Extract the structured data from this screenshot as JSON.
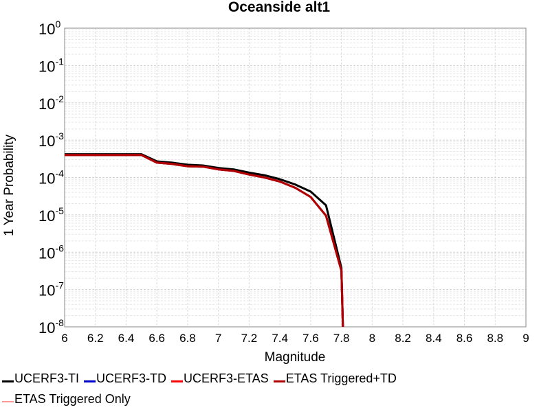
{
  "chart_data": {
    "type": "line",
    "title": "Oceanside alt1",
    "xlabel": "Magnitude",
    "ylabel": "1 Year Probability",
    "xlim": [
      6,
      9
    ],
    "ylim": [
      1e-08,
      1
    ],
    "y_scale": "log",
    "grid": true,
    "legend_position": "bottom",
    "x_ticks": [
      "6",
      "6.2",
      "6.4",
      "6.6",
      "6.8",
      "7",
      "7.2",
      "7.4",
      "7.6",
      "7.8",
      "8",
      "8.2",
      "8.4",
      "8.6",
      "8.8",
      "9"
    ],
    "y_ticks": [
      {
        "base": "10",
        "exp": "0"
      },
      {
        "base": "10",
        "exp": "-1"
      },
      {
        "base": "10",
        "exp": "-2"
      },
      {
        "base": "10",
        "exp": "-3"
      },
      {
        "base": "10",
        "exp": "-4"
      },
      {
        "base": "10",
        "exp": "-5"
      },
      {
        "base": "10",
        "exp": "-6"
      },
      {
        "base": "10",
        "exp": "-7"
      },
      {
        "base": "10",
        "exp": "-8"
      }
    ],
    "series": [
      {
        "name": "UCERF3-TI",
        "color": "#000000",
        "width": 3,
        "x": [
          6.0,
          6.1,
          6.2,
          6.3,
          6.4,
          6.5,
          6.6,
          6.7,
          6.8,
          6.9,
          7.0,
          7.1,
          7.2,
          7.3,
          7.4,
          7.5,
          7.6,
          7.7,
          7.8,
          7.81
        ],
        "y": [
          0.00042,
          0.00042,
          0.00042,
          0.00042,
          0.00042,
          0.00042,
          0.00027,
          0.00025,
          0.00022,
          0.00021,
          0.00018,
          0.000165,
          0.000135,
          0.000115,
          9e-05,
          6.5e-05,
          4.2e-05,
          1.8e-05,
          3.8e-07,
          1e-08
        ]
      },
      {
        "name": "UCERF3-TD",
        "color": "#0000cc",
        "width": 3,
        "x": [
          6.0,
          6.1,
          6.2,
          6.3,
          6.4,
          6.5,
          6.6,
          6.7,
          6.8,
          6.9,
          7.0,
          7.1,
          7.2,
          7.3,
          7.4,
          7.5,
          7.6,
          7.7,
          7.8,
          7.81
        ],
        "y": [
          0.0004,
          0.0004,
          0.0004,
          0.0004,
          0.0004,
          0.0004,
          0.00025,
          0.00023,
          0.0002,
          0.000195,
          0.000165,
          0.00015,
          0.00012,
          0.0001,
          7.8e-05,
          5.3e-05,
          3e-05,
          9.5e-06,
          3.2e-07,
          1e-08
        ]
      },
      {
        "name": "UCERF3-ETAS",
        "color": "#ff0000",
        "width": 3,
        "x": [
          6.0,
          6.1,
          6.2,
          6.3,
          6.4,
          6.5,
          6.6,
          6.7,
          6.8,
          6.9,
          7.0,
          7.1,
          7.2,
          7.3,
          7.4,
          7.5,
          7.6,
          7.7,
          7.8,
          7.81
        ],
        "y": [
          0.0004,
          0.0004,
          0.0004,
          0.0004,
          0.0004,
          0.0004,
          0.00025,
          0.00023,
          0.0002,
          0.000195,
          0.000165,
          0.00015,
          0.00012,
          0.0001,
          7.8e-05,
          5.3e-05,
          3e-05,
          9.5e-06,
          3.2e-07,
          1e-08
        ]
      },
      {
        "name": "ETAS Triggered+TD",
        "color": "#b00000",
        "width": 3,
        "x": [
          6.0,
          6.1,
          6.2,
          6.3,
          6.4,
          6.5,
          6.6,
          6.7,
          6.8,
          6.9,
          7.0,
          7.1,
          7.2,
          7.3,
          7.4,
          7.5,
          7.6,
          7.7,
          7.8,
          7.81
        ],
        "y": [
          0.0004,
          0.0004,
          0.0004,
          0.0004,
          0.0004,
          0.0004,
          0.00025,
          0.00023,
          0.0002,
          0.000195,
          0.000165,
          0.00015,
          0.00012,
          0.0001,
          7.8e-05,
          5.3e-05,
          3e-05,
          9.5e-06,
          3.2e-07,
          1e-08
        ]
      },
      {
        "name": "ETAS Triggered Only",
        "color": "#ff9999",
        "width": 1,
        "x": [],
        "y": []
      }
    ]
  }
}
